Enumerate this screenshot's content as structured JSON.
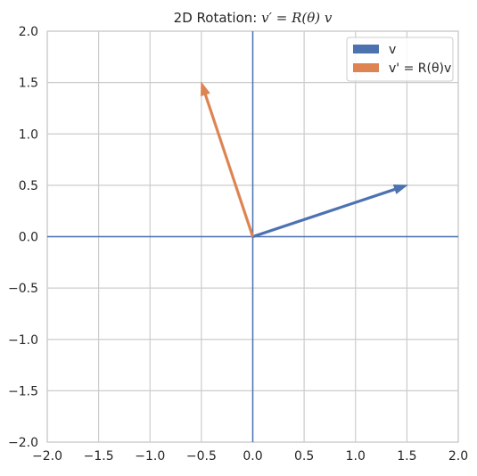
{
  "chart_data": {
    "type": "line",
    "title": "2D Rotation: v′ = R(θ) v",
    "title_prefix": "2D Rotation: ",
    "title_math": "v′ = R(θ) v",
    "xlabel": "",
    "ylabel": "",
    "xlim": [
      -2.0,
      2.0
    ],
    "ylim": [
      -2.0,
      2.0
    ],
    "xticks": [
      -2.0,
      -1.5,
      -1.0,
      -0.5,
      0.0,
      0.5,
      1.0,
      1.5,
      2.0
    ],
    "yticks": [
      -2.0,
      -1.5,
      -1.0,
      -0.5,
      0.0,
      0.5,
      1.0,
      1.5,
      2.0
    ],
    "xtick_labels": [
      "−2.0",
      "−1.5",
      "−1.0",
      "−0.5",
      "0.0",
      "0.5",
      "1.0",
      "1.5",
      "2.0"
    ],
    "ytick_labels": [
      "−2.0",
      "−1.5",
      "−1.0",
      "−0.5",
      "0.0",
      "0.5",
      "1.0",
      "1.5",
      "2.0"
    ],
    "grid": true,
    "axis_lines": {
      "x": 0.0,
      "y": 0.0,
      "color": "#4c72b0"
    },
    "legend_position": "upper right",
    "series": [
      {
        "name": "v",
        "color": "#4c72b0",
        "from": [
          0.0,
          0.0
        ],
        "to": [
          1.5,
          0.5
        ]
      },
      {
        "name": "v' = R(θ)v",
        "color": "#dd8452",
        "from": [
          0.0,
          0.0
        ],
        "to": [
          -0.5,
          1.5
        ]
      }
    ]
  }
}
